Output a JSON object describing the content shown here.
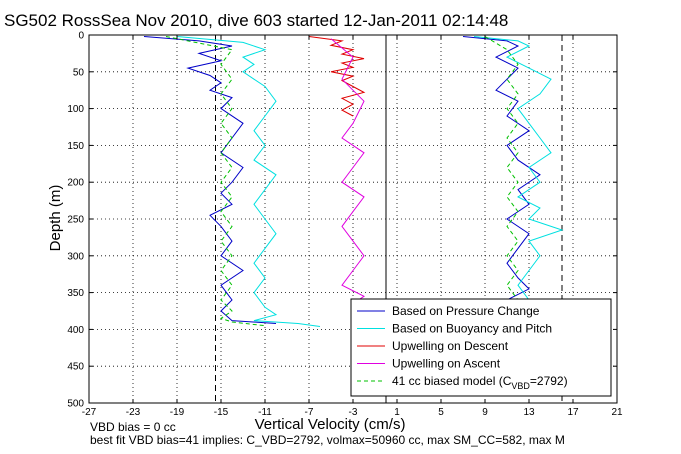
{
  "chart_data": {
    "type": "line",
    "title": "SG502 RossSea Nov 2010, dive 603 started 12-Jan-2011 02:14:48",
    "xlabel": "Vertical Velocity (cm/s)",
    "ylabel": "Depth (m)",
    "xlim": [
      -27,
      21
    ],
    "ylim": [
      0,
      500
    ],
    "y_reversed": true,
    "grid": "dotted",
    "xticks": [
      -27,
      -23,
      -19,
      -15,
      -11,
      -7,
      -3,
      1,
      5,
      9,
      13,
      17,
      21
    ],
    "yticks": [
      0,
      50,
      100,
      150,
      200,
      250,
      300,
      350,
      400,
      450,
      500
    ],
    "legend_position": "bottom-right",
    "series": [
      {
        "name": "Based on Pressure Change",
        "color": "#0000c8",
        "style": "solid",
        "segments": [
          {
            "x": [
              -22,
              -17,
              -14,
              -17,
              -15,
              -18,
              -16,
              -15,
              -16,
              -14,
              -15,
              -13,
              -14,
              -15,
              -13,
              -14,
              -15,
              -14,
              -16,
              -15,
              -14,
              -15,
              -13,
              -15,
              -14,
              -15,
              -14,
              -10
            ],
            "y": [
              2,
              8,
              15,
              25,
              35,
              45,
              55,
              65,
              75,
              85,
              100,
              120,
              140,
              160,
              180,
              200,
              215,
              230,
              245,
              260,
              280,
              300,
              320,
              340,
              360,
              375,
              388,
              392
            ]
          },
          {
            "x": [
              7,
              11,
              12,
              10,
              12,
              11,
              10,
              12,
              11,
              13,
              11,
              12,
              14,
              12,
              13,
              11,
              13,
              12,
              11,
              12,
              13,
              11,
              12
            ],
            "y": [
              2,
              8,
              15,
              30,
              45,
              60,
              75,
              90,
              110,
              130,
              150,
              170,
              190,
              210,
              230,
              250,
              270,
              290,
              310,
              330,
              345,
              360,
              372
            ]
          }
        ]
      },
      {
        "name": "Based on Buoyancy and Pitch",
        "color": "#00e0e0",
        "style": "solid",
        "segments": [
          {
            "x": [
              -19,
              -13,
              -11,
              -13,
              -12,
              -13,
              -12,
              -11,
              -10,
              -11,
              -12,
              -11,
              -12,
              -10,
              -11,
              -12,
              -11,
              -10,
              -11,
              -12,
              -11,
              -12,
              -11,
              -10,
              -12,
              -8,
              -6
            ],
            "y": [
              2,
              10,
              20,
              30,
              40,
              50,
              60,
              70,
              90,
              110,
              130,
              150,
              170,
              190,
              210,
              230,
              250,
              270,
              290,
              310,
              330,
              350,
              370,
              380,
              388,
              392,
              396
            ]
          },
          {
            "x": [
              8,
              12,
              13,
              11,
              13,
              15,
              14,
              12,
              13,
              14,
              15,
              13,
              14,
              12,
              14,
              13,
              16,
              13,
              14,
              13,
              12,
              13
            ],
            "y": [
              2,
              8,
              15,
              30,
              45,
              60,
              80,
              100,
              120,
              140,
              160,
              180,
              200,
              220,
              235,
              250,
              265,
              280,
              300,
              320,
              340,
              360
            ]
          }
        ]
      },
      {
        "name": "Upwelling on Descent",
        "color": "#e00000",
        "style": "solid",
        "segments": [
          {
            "x": [
              -7,
              -4,
              -5,
              -3,
              -4,
              -2,
              -4,
              -3,
              -5,
              -3,
              -4,
              -3,
              -2,
              -4,
              -3,
              -4,
              -3
            ],
            "y": [
              2,
              8,
              14,
              20,
              26,
              32,
              38,
              44,
              50,
              56,
              62,
              70,
              78,
              86,
              94,
              102,
              110
            ]
          }
        ]
      },
      {
        "name": "Upwelling on Ascent",
        "color": "#e000e0",
        "style": "solid",
        "segments": [
          {
            "x": [
              -5,
              -3,
              -4,
              -2,
              -3,
              -4,
              -2,
              -3,
              -4,
              -2,
              -3,
              -4,
              -3,
              -2,
              -3,
              -4,
              -2,
              -3,
              -2,
              -3,
              -2
            ],
            "y": [
              5,
              30,
              60,
              90,
              120,
              140,
              160,
              180,
              200,
              220,
              240,
              260,
              280,
              300,
              320,
              340,
              355,
              365,
              375,
              385,
              392
            ]
          }
        ]
      },
      {
        "name": "41 cc biased model",
        "color": "#00c000",
        "style": "dashed",
        "segments": [
          {
            "x": [
              -20,
              -14,
              -15,
              -14,
              -15,
              -14,
              -15,
              -14,
              -15,
              -14,
              -15,
              -14,
              -15,
              -14,
              -15,
              -14,
              -15,
              -14,
              -15,
              -14,
              -15,
              -14,
              -11
            ],
            "y": [
              2,
              20,
              40,
              60,
              80,
              100,
              120,
              140,
              160,
              180,
              200,
              220,
              240,
              260,
              280,
              300,
              320,
              340,
              360,
              375,
              385,
              390,
              395
            ]
          },
          {
            "x": [
              9,
              11,
              12,
              11,
              12,
              11,
              12,
              11,
              12,
              11,
              12,
              11,
              12,
              11,
              12,
              11,
              12,
              11,
              12
            ],
            "y": [
              2,
              20,
              40,
              60,
              80,
              100,
              120,
              140,
              160,
              180,
              200,
              220,
              240,
              260,
              280,
              300,
              320,
              340,
              360
            ]
          }
        ]
      }
    ],
    "reference_lines": [
      {
        "type": "vertical",
        "x": -15.5,
        "color": "#000000",
        "style": "dashed"
      },
      {
        "type": "vertical",
        "x": 16,
        "color": "#000000",
        "style": "dashed"
      },
      {
        "type": "vertical",
        "x": 0,
        "color": "#000000",
        "style": "solid"
      }
    ],
    "legend": {
      "entries": [
        {
          "label": "Based on Pressure Change",
          "color": "#0000c8",
          "style": "solid"
        },
        {
          "label": "Based on Buoyancy and Pitch",
          "color": "#00e0e0",
          "style": "solid"
        },
        {
          "label": "Upwelling on Descent",
          "color": "#e00000",
          "style": "solid"
        },
        {
          "label": "Upwelling on Ascent",
          "color": "#e000e0",
          "style": "solid"
        },
        {
          "label": "41 cc biased model (C",
          "label_sub": "VBD",
          "label_tail": "=2792)",
          "color": "#00c000",
          "style": "dashed"
        }
      ]
    },
    "annotations": {
      "line1": "VBD bias = 0 cc",
      "line2": "best fit VBD bias=41 implies: C_VBD=2792, volmax=50960 cc, max SM_CC=582, max M"
    }
  }
}
